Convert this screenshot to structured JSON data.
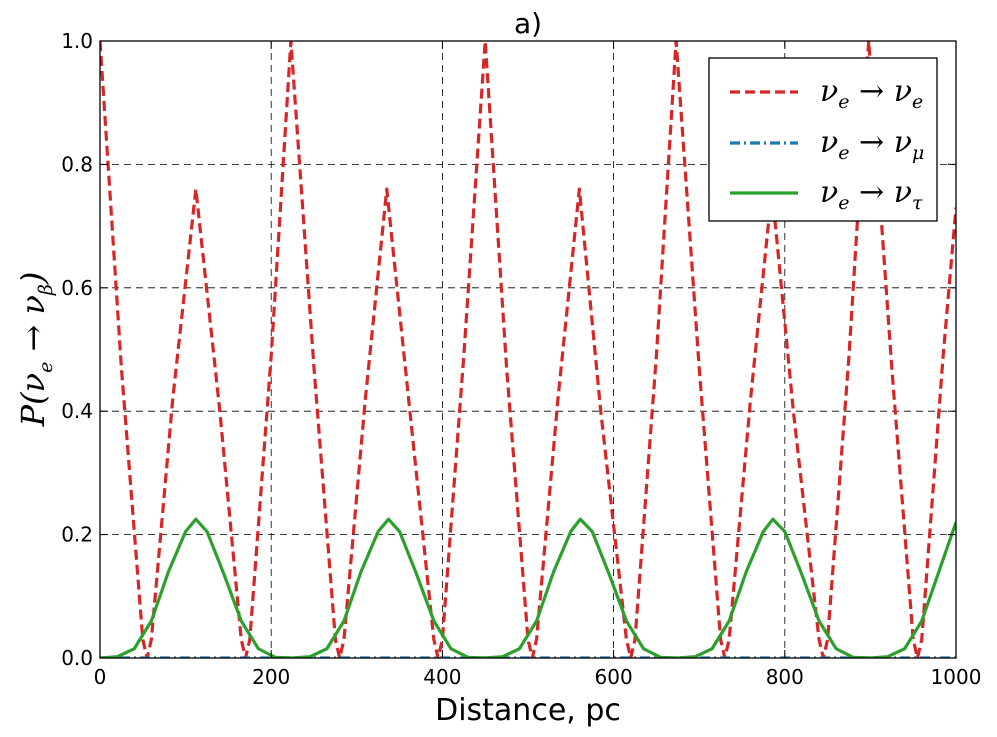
{
  "chart_data": {
    "type": "line",
    "title": "a)",
    "xlabel": "Distance, pc",
    "ylabel": {
      "base": "P(ν",
      "sub1": "e",
      "arrow": " → ν",
      "sub2": "β",
      "close": ")"
    },
    "xlim": [
      0,
      1000
    ],
    "ylim": [
      0.0,
      1.0
    ],
    "x_ticks": [
      0,
      200,
      400,
      600,
      800,
      1000
    ],
    "x_tick_labels": [
      "0",
      "200",
      "400",
      "600",
      "800",
      "1000"
    ],
    "y_ticks": [
      0.0,
      0.2,
      0.4,
      0.6,
      0.8,
      1.0
    ],
    "y_tick_labels": [
      "0.0",
      "0.2",
      "0.4",
      "0.6",
      "0.8",
      "1.0"
    ],
    "grid": true,
    "legend_position": "top-right",
    "series": [
      {
        "name": {
          "from": "ν",
          "from_sub": "e",
          "arrow": " → ",
          "to": "ν",
          "to_sub": "e"
        },
        "color": "#d62728",
        "style": "dashed",
        "x": [
          0,
          25,
          50,
          55,
          60,
          85,
          112,
          140,
          165,
          170,
          175,
          200,
          223,
          250,
          275,
          280,
          285,
          310,
          335,
          362,
          390,
          395,
          400,
          425,
          450,
          475,
          500,
          505,
          510,
          535,
          560,
          585,
          615,
          620,
          625,
          650,
          673,
          700,
          725,
          730,
          735,
          760,
          785,
          810,
          840,
          845,
          850,
          875,
          898,
          925,
          950,
          955,
          960,
          985,
          1000
        ],
        "y": [
          1.0,
          0.47,
          0.03,
          0.0,
          0.03,
          0.42,
          0.76,
          0.4,
          0.03,
          0.0,
          0.03,
          0.49,
          1.0,
          0.47,
          0.03,
          0.0,
          0.03,
          0.42,
          0.76,
          0.4,
          0.03,
          0.0,
          0.03,
          0.49,
          1.0,
          0.47,
          0.03,
          0.0,
          0.03,
          0.42,
          0.76,
          0.4,
          0.03,
          0.0,
          0.03,
          0.49,
          1.0,
          0.47,
          0.03,
          0.0,
          0.03,
          0.42,
          0.76,
          0.4,
          0.03,
          0.0,
          0.03,
          0.49,
          1.0,
          0.47,
          0.03,
          0.0,
          0.03,
          0.49,
          0.73
        ]
      },
      {
        "name": {
          "from": "ν",
          "from_sub": "e",
          "arrow": " → ",
          "to": "ν",
          "to_sub": "μ"
        },
        "color": "#1f77b4",
        "style": "dashdot",
        "x": [
          0,
          1000
        ],
        "y": [
          0.0,
          0.0
        ]
      },
      {
        "name": {
          "from": "ν",
          "from_sub": "e",
          "arrow": " → ",
          "to": "ν",
          "to_sub": "τ"
        },
        "color": "#2ca02c",
        "style": "solid",
        "x": [
          0,
          20,
          40,
          60,
          80,
          100,
          112,
          125,
          145,
          165,
          185,
          205,
          225,
          245,
          265,
          285,
          305,
          325,
          337,
          350,
          370,
          390,
          410,
          430,
          450,
          470,
          490,
          510,
          530,
          550,
          561,
          575,
          595,
          615,
          635,
          655,
          675,
          695,
          715,
          735,
          755,
          775,
          786,
          800,
          820,
          840,
          860,
          880,
          900,
          920,
          940,
          960,
          980,
          1000
        ],
        "y": [
          0.0,
          0.002,
          0.015,
          0.06,
          0.14,
          0.205,
          0.225,
          0.205,
          0.135,
          0.06,
          0.015,
          0.001,
          0.0,
          0.002,
          0.015,
          0.06,
          0.14,
          0.205,
          0.225,
          0.205,
          0.135,
          0.06,
          0.015,
          0.001,
          0.0,
          0.002,
          0.015,
          0.06,
          0.14,
          0.205,
          0.225,
          0.205,
          0.135,
          0.06,
          0.015,
          0.001,
          0.0,
          0.002,
          0.015,
          0.06,
          0.14,
          0.205,
          0.225,
          0.205,
          0.135,
          0.06,
          0.015,
          0.001,
          0.0,
          0.002,
          0.015,
          0.06,
          0.14,
          0.22
        ]
      }
    ]
  }
}
